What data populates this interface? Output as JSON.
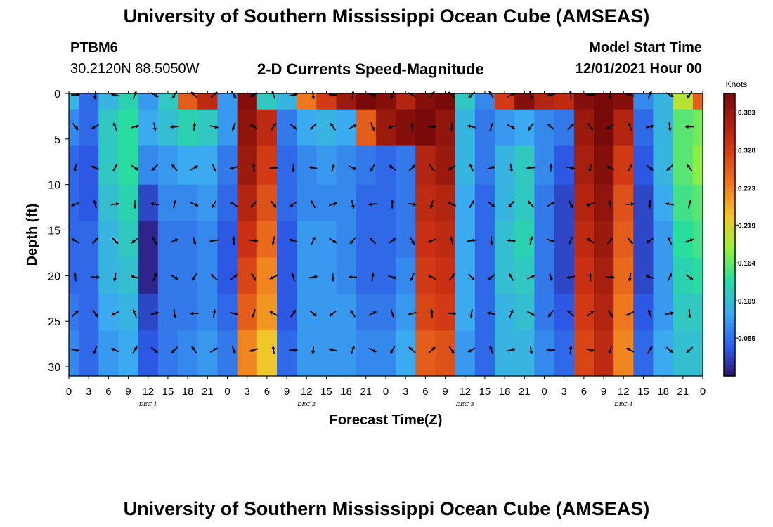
{
  "header": {
    "title": "University of Southern Mississippi Ocean Cube (AMSEAS)",
    "station": "PTBM6",
    "coords": "30.2120N  88.5050W",
    "product": "2-D Currents Speed-Magnitude",
    "model_start_label": "Model Start Time",
    "model_start_value": "12/01/2021 Hour 00"
  },
  "footer": {
    "title": "University of Southern Mississippi Ocean Cube (AMSEAS)"
  },
  "chart_data": {
    "type": "heatmap",
    "title": "2-D Currents Speed-Magnitude",
    "xlabel": "Forecast Time(Z)",
    "ylabel": "Depth (ft)",
    "xlim": [
      0,
      96
    ],
    "ylim": [
      31,
      0
    ],
    "x_ticks": [
      0,
      3,
      6,
      9,
      12,
      15,
      18,
      21,
      24,
      27,
      30,
      33,
      36,
      39,
      42,
      45,
      48,
      51,
      54,
      57,
      60,
      63,
      66,
      69,
      72,
      75,
      78,
      81,
      84,
      87,
      90,
      93,
      96
    ],
    "x_tick_labels": [
      "0",
      "3",
      "6",
      "9",
      "12",
      "15",
      "18",
      "21",
      "0",
      "3",
      "6",
      "9",
      "12",
      "15",
      "18",
      "21",
      "0",
      "3",
      "6",
      "9",
      "12",
      "15",
      "18",
      "21",
      "0",
      "3",
      "6",
      "9",
      "12",
      "15",
      "18",
      "21",
      "0"
    ],
    "day_labels": [
      {
        "x": 12,
        "text": "DEC 1"
      },
      {
        "x": 36,
        "text": "DEC 2"
      },
      {
        "x": 60,
        "text": "DEC 3"
      },
      {
        "x": 84,
        "text": "DEC 4"
      }
    ],
    "y_ticks": [
      0,
      5,
      10,
      15,
      20,
      25,
      30
    ],
    "colorbar": {
      "label": "Knots",
      "min": 0.0,
      "max": 0.41,
      "ticks": [
        0.055,
        0.109,
        0.164,
        0.219,
        0.273,
        0.328,
        0.383
      ],
      "tick_labels": [
        "0.055",
        "0.109",
        "0.164",
        "0.219",
        "0.273",
        "0.328",
        "0.383"
      ]
    },
    "depths_ft": [
      0,
      3.5,
      8,
      12,
      16,
      20,
      24,
      28
    ],
    "speed_knots": [
      [
        0.1,
        0.05,
        0.1,
        0.13,
        0.08,
        0.12,
        0.3,
        0.35,
        0.08,
        0.4,
        0.12,
        0.1,
        0.28,
        0.33,
        0.38,
        0.41,
        0.4,
        0.36,
        0.4,
        0.41,
        0.12,
        0.07,
        0.33,
        0.4,
        0.36,
        0.35,
        0.4,
        0.41,
        0.4,
        0.07,
        0.1,
        0.2,
        0.3
      ],
      [
        0.07,
        0.05,
        0.12,
        0.14,
        0.09,
        0.11,
        0.13,
        0.12,
        0.08,
        0.39,
        0.35,
        0.06,
        0.09,
        0.1,
        0.09,
        0.3,
        0.38,
        0.4,
        0.41,
        0.39,
        0.1,
        0.06,
        0.08,
        0.09,
        0.07,
        0.06,
        0.38,
        0.41,
        0.36,
        0.05,
        0.1,
        0.16,
        0.17
      ],
      [
        0.05,
        0.04,
        0.12,
        0.14,
        0.07,
        0.08,
        0.09,
        0.09,
        0.06,
        0.38,
        0.33,
        0.05,
        0.07,
        0.08,
        0.07,
        0.06,
        0.05,
        0.06,
        0.36,
        0.38,
        0.1,
        0.06,
        0.1,
        0.12,
        0.07,
        0.04,
        0.37,
        0.4,
        0.33,
        0.04,
        0.1,
        0.16,
        0.18
      ],
      [
        0.05,
        0.04,
        0.11,
        0.13,
        0.03,
        0.07,
        0.07,
        0.08,
        0.05,
        0.36,
        0.31,
        0.05,
        0.07,
        0.07,
        0.07,
        0.05,
        0.05,
        0.06,
        0.35,
        0.36,
        0.09,
        0.05,
        0.1,
        0.12,
        0.06,
        0.03,
        0.36,
        0.39,
        0.31,
        0.03,
        0.09,
        0.15,
        0.16
      ],
      [
        0.05,
        0.05,
        0.1,
        0.12,
        0.01,
        0.06,
        0.06,
        0.07,
        0.04,
        0.34,
        0.29,
        0.04,
        0.08,
        0.08,
        0.07,
        0.05,
        0.05,
        0.06,
        0.34,
        0.35,
        0.09,
        0.05,
        0.11,
        0.13,
        0.06,
        0.03,
        0.35,
        0.38,
        0.3,
        0.03,
        0.08,
        0.14,
        0.15
      ],
      [
        0.05,
        0.05,
        0.1,
        0.11,
        0.01,
        0.06,
        0.06,
        0.07,
        0.04,
        0.32,
        0.27,
        0.04,
        0.08,
        0.08,
        0.07,
        0.05,
        0.05,
        0.07,
        0.33,
        0.34,
        0.09,
        0.05,
        0.11,
        0.12,
        0.06,
        0.03,
        0.34,
        0.37,
        0.29,
        0.03,
        0.08,
        0.13,
        0.14
      ],
      [
        0.06,
        0.05,
        0.09,
        0.1,
        0.03,
        0.06,
        0.06,
        0.07,
        0.05,
        0.3,
        0.26,
        0.04,
        0.08,
        0.08,
        0.08,
        0.06,
        0.06,
        0.08,
        0.32,
        0.33,
        0.09,
        0.05,
        0.1,
        0.11,
        0.06,
        0.04,
        0.33,
        0.36,
        0.28,
        0.04,
        0.08,
        0.12,
        0.12
      ],
      [
        0.07,
        0.05,
        0.08,
        0.09,
        0.04,
        0.06,
        0.07,
        0.08,
        0.06,
        0.27,
        0.23,
        0.05,
        0.08,
        0.08,
        0.08,
        0.07,
        0.07,
        0.09,
        0.3,
        0.31,
        0.08,
        0.05,
        0.1,
        0.1,
        0.07,
        0.05,
        0.32,
        0.35,
        0.27,
        0.05,
        0.09,
        0.11,
        0.11
      ]
    ]
  }
}
